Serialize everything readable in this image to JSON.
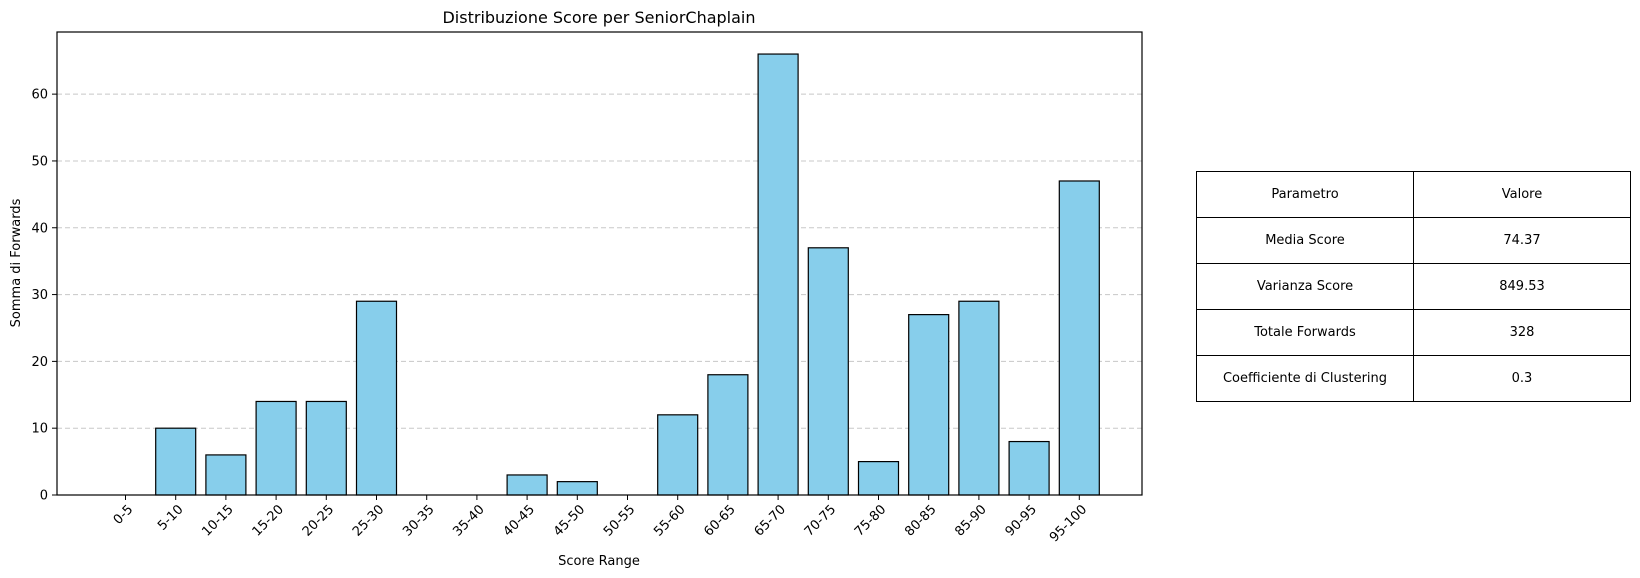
{
  "chart_data": {
    "type": "bar",
    "title": "Distribuzione Score per SeniorChaplain",
    "xlabel": "Score Range",
    "ylabel": "Somma di Forwards",
    "categories": [
      "0-5",
      "5-10",
      "10-15",
      "15-20",
      "20-25",
      "25-30",
      "30-35",
      "35-40",
      "40-45",
      "45-50",
      "50-55",
      "55-60",
      "60-65",
      "65-70",
      "70-75",
      "75-80",
      "80-85",
      "85-90",
      "90-95",
      "95-100"
    ],
    "values": [
      0,
      10,
      6,
      14,
      14,
      29,
      0,
      0,
      3,
      2,
      0,
      12,
      18,
      66,
      37,
      5,
      27,
      29,
      8,
      47
    ],
    "ylim": [
      0,
      69.3
    ],
    "yticks": [
      0,
      10,
      20,
      30,
      40,
      50,
      60
    ],
    "grid": "y-dashed",
    "bar_color": "#87CEEB",
    "edge_color": "#000000",
    "grid_color": "#c8c8c8"
  },
  "table": {
    "header": [
      "Parametro",
      "Valore"
    ],
    "rows": [
      [
        "Media Score",
        "74.37"
      ],
      [
        "Varianza Score",
        "849.53"
      ],
      [
        "Totale Forwards",
        "328"
      ],
      [
        "Coefficiente di Clustering",
        "0.3"
      ]
    ]
  }
}
